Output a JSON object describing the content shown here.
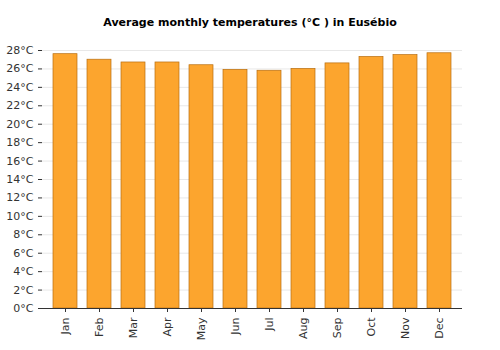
{
  "chart_data": {
    "type": "bar",
    "title": "Average monthly temperatures (°C ) in Eusébio",
    "categories": [
      "Jan",
      "Feb",
      "Mar",
      "Apr",
      "May",
      "Jun",
      "Jul",
      "Aug",
      "Sep",
      "Oct",
      "Nov",
      "Dec"
    ],
    "values": [
      27.6,
      27.0,
      26.7,
      26.7,
      26.4,
      25.9,
      25.8,
      26.0,
      26.6,
      27.3,
      27.5,
      27.7
    ],
    "color": "#fca52e",
    "ylim": [
      0,
      28
    ],
    "yticks": [
      {
        "value": 0,
        "label": "0°C"
      },
      {
        "value": 2,
        "label": "2°C"
      },
      {
        "value": 4,
        "label": "4°C"
      },
      {
        "value": 6,
        "label": "6°C"
      },
      {
        "value": 8,
        "label": "8°C"
      },
      {
        "value": 10,
        "label": "10°C"
      },
      {
        "value": 12,
        "label": "12°C"
      },
      {
        "value": 14,
        "label": "14°C"
      },
      {
        "value": 16,
        "label": "16°C"
      },
      {
        "value": 18,
        "label": "18°C"
      },
      {
        "value": 20,
        "label": "20°C"
      },
      {
        "value": 22,
        "label": "22°C"
      },
      {
        "value": 24,
        "label": "24°C"
      },
      {
        "value": 26,
        "label": "26°C"
      },
      {
        "value": 28,
        "label": "28°C"
      }
    ],
    "grid": true
  }
}
